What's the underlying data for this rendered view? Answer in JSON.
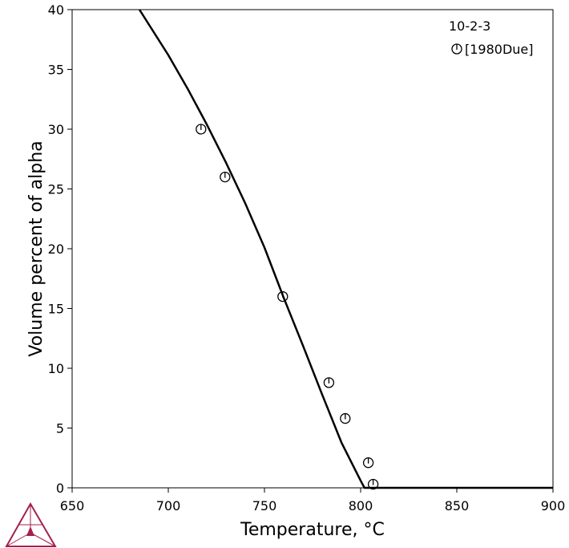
{
  "chart_data": {
    "type": "scatter",
    "xlabel": "Temperature, °C",
    "ylabel": "Volume percent of alpha",
    "xlim": [
      650,
      900
    ],
    "ylim": [
      0,
      40
    ],
    "xticks": [
      "650",
      "700",
      "750",
      "800",
      "850",
      "900"
    ],
    "yticks": [
      "0",
      "5",
      "10",
      "15",
      "20",
      "25",
      "30",
      "35",
      "40"
    ],
    "grid": false,
    "legend_position": "top-right",
    "legend_title": "10-2-3",
    "series": [
      {
        "name": "",
        "type": "line",
        "color": "#000000",
        "x": [
          685,
          700,
          710,
          720,
          730,
          740,
          750,
          760,
          770,
          780,
          790,
          800,
          802,
          810,
          900
        ],
        "y": [
          40,
          36.2,
          33.4,
          30.4,
          27.2,
          23.8,
          20.1,
          15.9,
          11.9,
          7.8,
          3.8,
          0.6,
          0,
          0,
          0
        ]
      },
      {
        "name": "[1980Due]",
        "type": "scatter",
        "marker": "circle-with-tick",
        "color": "#000000",
        "x": [
          717,
          729.5,
          759.5,
          783.5,
          792,
          804,
          806.5
        ],
        "y": [
          30,
          26,
          16,
          8.8,
          5.8,
          2.1,
          0.3
        ]
      }
    ]
  },
  "brand": {
    "logo_icon": "thermo-calc-triangle-logo",
    "color": "#a6204b"
  }
}
